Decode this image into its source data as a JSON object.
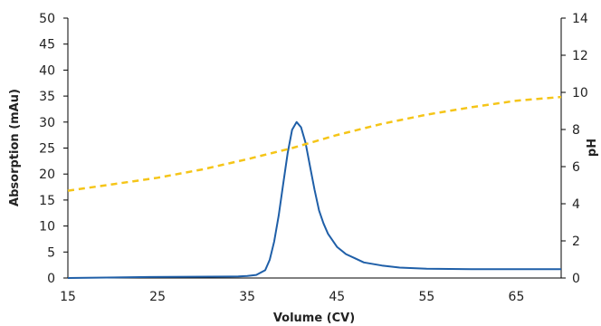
{
  "chart_data": {
    "type": "line",
    "xlabel": "Volume (CV)",
    "ylabel": "Absorption (mAu)",
    "y2label": "pH",
    "xlim": [
      15,
      70
    ],
    "ylim": [
      0,
      50
    ],
    "y2lim": [
      0,
      14
    ],
    "x_ticks": [
      "15",
      "25",
      "35",
      "45",
      "55",
      "65"
    ],
    "y_ticks": [
      "0",
      "5",
      "10",
      "15",
      "20",
      "25",
      "30",
      "35",
      "40",
      "45",
      "50"
    ],
    "y2_ticks": [
      "0",
      "2",
      "4",
      "6",
      "8",
      "10",
      "12",
      "14"
    ],
    "grid": false,
    "legend": "none",
    "series": [
      {
        "axis": "left",
        "style": "solid",
        "color": "#1f5fa8",
        "x": [
          15,
          24,
          34,
          35,
          36,
          37,
          37.5,
          38,
          38.5,
          39,
          39.5,
          40,
          40.5,
          41,
          41.5,
          42,
          42.5,
          43,
          43.5,
          44,
          45,
          46,
          47,
          48,
          50,
          52,
          55,
          60,
          70
        ],
        "y": [
          0,
          0.2,
          0.3,
          0.4,
          0.6,
          1.5,
          3.5,
          7,
          12,
          18,
          24,
          28.5,
          30,
          29,
          26,
          21.5,
          17,
          13,
          10.5,
          8.5,
          6,
          4.6,
          3.8,
          3,
          2.4,
          2,
          1.8,
          1.7,
          1.7
        ]
      },
      {
        "axis": "right",
        "style": "dashed",
        "color": "#f5c518",
        "x": [
          15,
          20,
          25,
          30,
          35,
          40,
          45,
          50,
          55,
          60,
          65,
          70
        ],
        "y": [
          4.7,
          5.05,
          5.4,
          5.85,
          6.4,
          7.0,
          7.7,
          8.3,
          8.8,
          9.2,
          9.55,
          9.75
        ]
      }
    ]
  }
}
